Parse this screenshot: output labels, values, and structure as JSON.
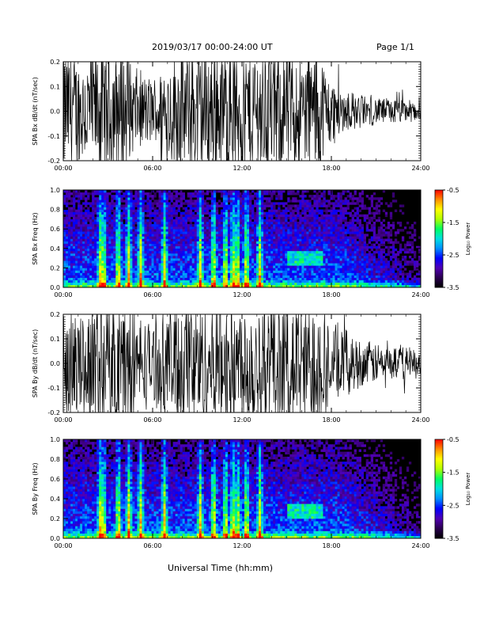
{
  "header": {
    "date_range": "2019/03/17  00:00-24:00 UT",
    "page": "Page 1/1"
  },
  "footer": {
    "xlabel": "Universal Time (hh:mm)"
  },
  "colors": {
    "trace": "#000000",
    "background": "#000000",
    "colorscale": [
      "#000000",
      "#2a0050",
      "#5000b4",
      "#0000ff",
      "#0090ff",
      "#00e0e0",
      "#00ff60",
      "#b0ff00",
      "#ffff00",
      "#ff9000",
      "#ff0000"
    ]
  },
  "chart_data": [
    {
      "type": "line",
      "ylabel": "SPA Bx dB/dt (nT/sec)",
      "xlim": [
        0,
        24
      ],
      "ylim": [
        -0.2,
        0.2
      ],
      "x_tick_labels": [
        "00:00",
        "06:00",
        "12:00",
        "18:00",
        "24:00"
      ],
      "y_tick_labels": [
        "0.2",
        "0.1",
        "0.0",
        "-0.1",
        "-0.2"
      ],
      "series": [
        {
          "x": [
            0,
            1,
            2,
            2.3,
            2.5,
            3,
            3.5,
            4,
            4.5,
            5,
            6,
            7,
            8,
            9,
            10,
            11,
            12,
            13,
            14,
            15,
            16,
            17,
            18,
            19,
            20,
            21,
            22,
            23,
            24
          ],
          "amplitude": [
            0.2,
            0.16,
            0.2,
            0.2,
            0.2,
            0.2,
            0.2,
            0.2,
            0.15,
            0.12,
            0.1,
            0.14,
            0.2,
            0.2,
            0.2,
            0.2,
            0.2,
            0.2,
            0.2,
            0.2,
            0.18,
            0.2,
            0.1,
            0.06,
            0.05,
            0.04,
            0.04,
            0.035,
            0.03
          ]
        }
      ]
    },
    {
      "type": "heatmap",
      "ylabel": "SPA Bx Freq (Hz)",
      "xlim": [
        0,
        24
      ],
      "ylim": [
        0,
        1
      ],
      "x_tick_labels": [
        "00:00",
        "06:00",
        "12:00",
        "18:00",
        "24:00"
      ],
      "y_tick_labels": [
        "1.0",
        "0.8",
        "0.6",
        "0.4",
        "0.2",
        "0.0"
      ],
      "colorbar_label": "Log₁₀ Power",
      "colorbar_range": [
        -3.5,
        -0.5
      ],
      "colorbar_tick_labels": [
        "-0.5",
        "-1.5",
        "-2.5",
        "-3.5"
      ],
      "bright_bursts_hour": [
        2.5,
        2.7,
        3.7,
        4.4,
        5.2,
        6.8,
        9.2,
        10.1,
        10.9,
        11.4,
        11.7,
        12.3,
        13.2
      ],
      "band_enhancement": {
        "x_range": [
          15.0,
          17.5
        ],
        "freq_center": 0.3
      }
    },
    {
      "type": "line",
      "ylabel": "SPA By dB/dt (nT/sec)",
      "xlim": [
        0,
        24
      ],
      "ylim": [
        -0.2,
        0.2
      ],
      "x_tick_labels": [
        "00:00",
        "06:00",
        "12:00",
        "18:00",
        "24:00"
      ],
      "y_tick_labels": [
        "0.2",
        "0.1",
        "0.0",
        "-0.1",
        "-0.2"
      ],
      "series": [
        {
          "x": [
            0,
            1,
            2,
            2.3,
            2.5,
            3,
            3.5,
            4,
            4.5,
            5,
            6,
            7,
            8,
            9,
            10,
            11,
            12,
            13,
            14,
            15,
            16,
            17,
            18,
            19,
            20,
            21,
            22,
            23,
            24
          ],
          "amplitude": [
            0.16,
            0.14,
            0.2,
            0.2,
            0.2,
            0.2,
            0.2,
            0.2,
            0.2,
            0.15,
            0.12,
            0.16,
            0.2,
            0.2,
            0.2,
            0.2,
            0.2,
            0.2,
            0.2,
            0.2,
            0.2,
            0.2,
            0.12,
            0.1,
            0.07,
            0.06,
            0.05,
            0.05,
            0.04
          ]
        }
      ]
    },
    {
      "type": "heatmap",
      "ylabel": "SPA By Freq (Hz)",
      "xlim": [
        0,
        24
      ],
      "ylim": [
        0,
        1
      ],
      "x_tick_labels": [
        "00:00",
        "06:00",
        "12:00",
        "18:00",
        "24:00"
      ],
      "y_tick_labels": [
        "1.0",
        "0.8",
        "0.6",
        "0.4",
        "0.2",
        "0.0"
      ],
      "colorbar_label": "Log₁₀ Power",
      "colorbar_range": [
        -3.5,
        -0.5
      ],
      "colorbar_tick_labels": [
        "-0.5",
        "-1.5",
        "-2.5",
        "-3.5"
      ],
      "bright_bursts_hour": [
        2.5,
        2.7,
        3.7,
        4.4,
        5.2,
        6.8,
        9.2,
        10.1,
        10.9,
        11.4,
        11.7,
        12.3,
        13.2
      ],
      "band_enhancement": {
        "x_range": [
          15.0,
          17.5
        ],
        "freq_center": 0.28
      }
    }
  ]
}
